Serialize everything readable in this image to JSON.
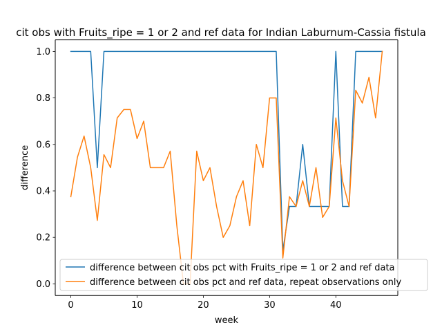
{
  "chart_data": {
    "type": "line",
    "title": "cit obs with Fruits_ripe = 1 or 2 and ref data for Indian Laburnum-Cassia fistula",
    "xlabel": "week",
    "ylabel": "difference",
    "xlim": [
      -2.35,
      49.35
    ],
    "ylim": [
      -0.05,
      1.05
    ],
    "xticks": [
      0,
      10,
      20,
      30,
      40
    ],
    "yticks": [
      0.0,
      0.2,
      0.4,
      0.6,
      0.8,
      1.0
    ],
    "xtick_labels": [
      "0",
      "10",
      "20",
      "30",
      "40"
    ],
    "ytick_labels": [
      "0.0",
      "0.2",
      "0.4",
      "0.6",
      "0.8",
      "1.0"
    ],
    "legend_position": "lower-right",
    "series": [
      {
        "name": "difference between cit obs pct with Fruits_ripe = 1 or 2 and ref data",
        "color": "#1f77b4",
        "x": [
          0,
          1,
          2,
          3,
          4,
          5,
          6,
          7,
          8,
          9,
          10,
          11,
          12,
          13,
          14,
          15,
          16,
          17,
          18,
          19,
          20,
          21,
          22,
          23,
          24,
          25,
          26,
          27,
          28,
          29,
          30,
          31,
          32,
          33,
          34,
          35,
          36,
          37,
          38,
          39,
          40,
          41,
          42,
          43,
          44,
          45,
          46,
          47
        ],
        "values": [
          1,
          1,
          1,
          1,
          0.5,
          1,
          1,
          1,
          1,
          1,
          1,
          1,
          1,
          1,
          1,
          1,
          1,
          1,
          1,
          1,
          1,
          1,
          1,
          1,
          1,
          1,
          1,
          1,
          1,
          1,
          1,
          1,
          0.143,
          0.333,
          0.333,
          0.6,
          0.333,
          0.333,
          0.333,
          0.333,
          1,
          0.333,
          0.333,
          1,
          1,
          1,
          1,
          1
        ]
      },
      {
        "name": "difference between cit obs pct and ref data, repeat observations only",
        "color": "#ff7f0e",
        "x": [
          0,
          1,
          2,
          3,
          4,
          5,
          6,
          7,
          8,
          9,
          10,
          11,
          12,
          13,
          14,
          15,
          16,
          17,
          18,
          19,
          20,
          21,
          22,
          23,
          24,
          25,
          26,
          27,
          28,
          29,
          30,
          31,
          32,
          33,
          34,
          35,
          36,
          37,
          38,
          39,
          40,
          41,
          42,
          43,
          44,
          45,
          46,
          47
        ],
        "values": [
          0.375,
          0.545,
          0.636,
          0.5,
          0.273,
          0.556,
          0.5,
          0.714,
          0.75,
          0.75,
          0.625,
          0.7,
          0.5,
          0.5,
          0.5,
          0.571,
          0.25,
          0.0,
          0.0,
          0.571,
          0.444,
          0.5,
          0.333,
          0.2,
          0.25,
          0.375,
          0.444,
          0.25,
          0.6,
          0.5,
          0.8,
          0.8,
          0.111,
          0.375,
          0.333,
          0.444,
          0.333,
          0.5,
          0.286,
          0.333,
          0.714,
          0.444,
          0.333,
          0.833,
          0.778,
          0.889,
          0.714,
          1.0
        ]
      }
    ]
  }
}
